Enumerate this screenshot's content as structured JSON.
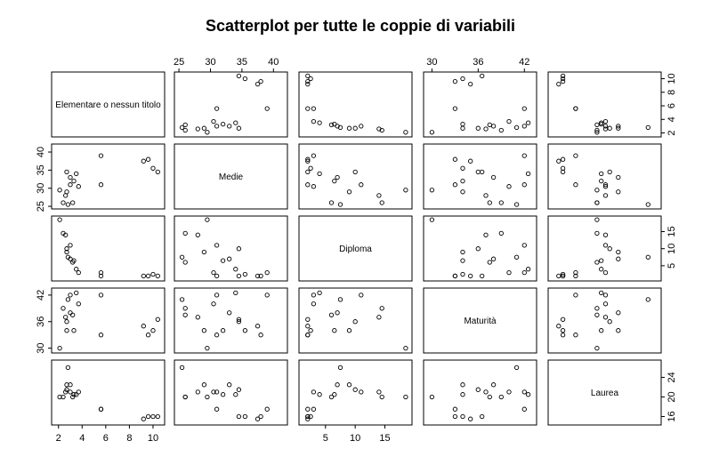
{
  "chart_data": {
    "type": "scatter",
    "title": "Scatterplot per tutte le coppie di variabili",
    "variables": [
      {
        "name": "Elementare o nessun titolo",
        "range": [
          1.8,
          10.6
        ],
        "ticks": [
          2,
          4,
          6,
          8,
          10
        ],
        "values": [
          2.1,
          2.4,
          2.6,
          2.7,
          2.7,
          2.8,
          3.0,
          3.0,
          3.2,
          3.3,
          3.5,
          3.7,
          5.6,
          5.6,
          9.2,
          9.6,
          10.0,
          10.4
        ]
      },
      {
        "name": "Medie",
        "range": [
          25.0,
          41.5
        ],
        "ticks": [
          25,
          30,
          35,
          40
        ],
        "values": [
          29.5,
          26.0,
          28.0,
          34.5,
          29.0,
          25.5,
          31.0,
          33.0,
          26.0,
          32.0,
          34.0,
          30.5,
          39.0,
          31.0,
          37.5,
          38.0,
          35.5,
          34.5
        ]
      },
      {
        "name": "Diploma",
        "range": [
          1.3,
          18.8
        ],
        "ticks": [
          5,
          10,
          15
        ],
        "values": [
          18.5,
          14.5,
          14.0,
          10.0,
          9.0,
          7.5,
          11.0,
          7.0,
          6.0,
          6.5,
          4.0,
          3.0,
          3.0,
          2.0,
          2.0,
          2.0,
          2.5,
          2.0
        ]
      },
      {
        "name": "Maturità",
        "range": [
          29.5,
          43.0
        ],
        "ticks": [
          30,
          36,
          42
        ],
        "values": [
          30.0,
          39.0,
          37.0,
          36.0,
          34.0,
          41.0,
          42.0,
          38.0,
          37.5,
          34.0,
          42.5,
          40.0,
          42.0,
          33.0,
          35.0,
          33.0,
          34.0,
          36.5
        ]
      },
      {
        "name": "Laurea",
        "range": [
          14.8,
          27.0
        ],
        "ticks": [
          16,
          20,
          24
        ],
        "values": [
          20.0,
          20.0,
          21.0,
          21.5,
          22.5,
          26.0,
          21.0,
          22.5,
          20.0,
          20.5,
          20.5,
          21.0,
          17.5,
          17.5,
          15.5,
          16.0,
          16.0,
          16.0
        ]
      }
    ],
    "axis_sides": {
      "top": [
        1,
        3
      ],
      "bottom": [
        0,
        2
      ],
      "left": [
        1,
        3
      ],
      "right": [
        0,
        2,
        4
      ]
    }
  }
}
